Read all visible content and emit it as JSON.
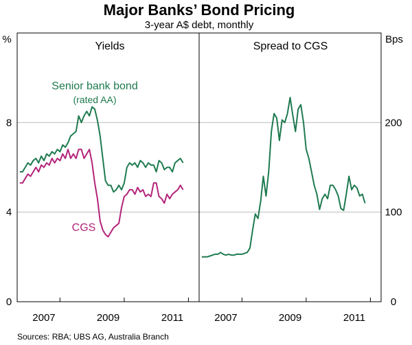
{
  "title": "Major Banks’ Bond Pricing",
  "subtitle": "3-year A$ debt, monthly",
  "source": "Sources: RBA; UBS AG, Australia Branch",
  "left_unit": "%",
  "right_unit": "Bps",
  "colors": {
    "senior": "#1e7a4f",
    "cgs": "#b3237a",
    "grid": "#bdbdbd",
    "frame": "#000000"
  },
  "chart_data": [
    {
      "type": "line",
      "panel_title": "Yields",
      "y_unit": "%",
      "ylim": [
        0,
        12
      ],
      "yticks": [
        "0",
        "4",
        "8"
      ],
      "x_ticks": [
        "2007",
        "2009",
        "2011"
      ],
      "xlim": [
        "2005-09",
        "2011-05"
      ],
      "series": [
        {
          "name": "Senior bank bond",
          "name_note": "(rated AA)",
          "color": "#1e7a4f",
          "x": [
            "2005-10",
            "2005-11",
            "2005-12",
            "2006-01",
            "2006-02",
            "2006-03",
            "2006-04",
            "2006-05",
            "2006-06",
            "2006-07",
            "2006-08",
            "2006-09",
            "2006-10",
            "2006-11",
            "2006-12",
            "2007-01",
            "2007-02",
            "2007-03",
            "2007-04",
            "2007-05",
            "2007-06",
            "2007-07",
            "2007-08",
            "2007-09",
            "2007-10",
            "2007-11",
            "2007-12",
            "2008-01",
            "2008-02",
            "2008-03",
            "2008-04",
            "2008-05",
            "2008-06",
            "2008-07",
            "2008-08",
            "2008-09",
            "2008-10",
            "2008-11",
            "2008-12",
            "2009-01",
            "2009-02",
            "2009-03",
            "2009-04",
            "2009-05",
            "2009-06",
            "2009-07",
            "2009-08",
            "2009-09",
            "2009-10",
            "2009-11",
            "2009-12",
            "2010-01",
            "2010-02",
            "2010-03",
            "2010-04",
            "2010-05",
            "2010-06",
            "2010-07",
            "2010-08",
            "2010-09",
            "2010-10",
            "2010-11"
          ],
          "values": [
            5.8,
            5.8,
            6.0,
            6.2,
            6.1,
            6.3,
            6.4,
            6.2,
            6.5,
            6.3,
            6.6,
            6.5,
            6.7,
            6.6,
            6.8,
            6.7,
            7.0,
            6.9,
            7.1,
            7.4,
            7.5,
            7.6,
            8.3,
            8.0,
            8.3,
            8.5,
            8.3,
            8.7,
            8.6,
            8.1,
            7.4,
            6.4,
            5.4,
            5.2,
            5.2,
            4.9,
            5.0,
            5.2,
            5.0,
            5.3,
            6.0,
            6.2,
            6.1,
            6.2,
            6.0,
            6.3,
            6.2,
            6.0,
            6.2,
            6.1,
            6.1,
            5.8,
            6.3,
            6.2,
            5.9,
            6.0,
            6.0,
            5.8,
            6.2,
            6.3,
            6.4,
            6.2
          ]
        },
        {
          "name": "CGS",
          "color": "#b3237a",
          "x": [
            "2005-10",
            "2005-11",
            "2005-12",
            "2006-01",
            "2006-02",
            "2006-03",
            "2006-04",
            "2006-05",
            "2006-06",
            "2006-07",
            "2006-08",
            "2006-09",
            "2006-10",
            "2006-11",
            "2006-12",
            "2007-01",
            "2007-02",
            "2007-03",
            "2007-04",
            "2007-05",
            "2007-06",
            "2007-07",
            "2007-08",
            "2007-09",
            "2007-10",
            "2007-11",
            "2007-12",
            "2008-01",
            "2008-02",
            "2008-03",
            "2008-04",
            "2008-05",
            "2008-06",
            "2008-07",
            "2008-08",
            "2008-09",
            "2008-10",
            "2008-11",
            "2008-12",
            "2009-01",
            "2009-02",
            "2009-03",
            "2009-04",
            "2009-05",
            "2009-06",
            "2009-07",
            "2009-08",
            "2009-09",
            "2009-10",
            "2009-11",
            "2009-12",
            "2010-01",
            "2010-02",
            "2010-03",
            "2010-04",
            "2010-05",
            "2010-06",
            "2010-07",
            "2010-08",
            "2010-09",
            "2010-10",
            "2010-11"
          ],
          "values": [
            5.3,
            5.3,
            5.5,
            5.7,
            5.6,
            5.8,
            6.0,
            5.8,
            6.1,
            6.0,
            6.2,
            6.1,
            6.4,
            6.2,
            6.4,
            6.3,
            6.6,
            6.4,
            6.8,
            6.4,
            6.6,
            6.4,
            6.8,
            6.8,
            6.4,
            6.6,
            6.8,
            6.2,
            5.3,
            4.6,
            3.6,
            3.2,
            3.0,
            2.9,
            3.1,
            3.3,
            3.4,
            3.5,
            4.2,
            4.7,
            4.8,
            5.0,
            5.0,
            4.8,
            5.1,
            4.9,
            5.0,
            4.7,
            4.8,
            4.7,
            5.3,
            5.3,
            4.7,
            4.6,
            4.4,
            4.8,
            4.6,
            4.8,
            4.9,
            5.0,
            5.2,
            5.0
          ]
        }
      ]
    },
    {
      "type": "line",
      "panel_title": "Spread to CGS",
      "y_unit": "Bps",
      "ylim": [
        0,
        300
      ],
      "yticks": [
        "0",
        "100",
        "200"
      ],
      "x_ticks": [
        "2007",
        "2009",
        "2011"
      ],
      "xlim": [
        "2005-09",
        "2011-05"
      ],
      "series": [
        {
          "name": "",
          "color": "#1e7a4f",
          "x": [
            "2005-10",
            "2005-11",
            "2005-12",
            "2006-01",
            "2006-02",
            "2006-03",
            "2006-04",
            "2006-05",
            "2006-06",
            "2006-07",
            "2006-08",
            "2006-09",
            "2006-10",
            "2006-11",
            "2006-12",
            "2007-01",
            "2007-02",
            "2007-03",
            "2007-04",
            "2007-05",
            "2007-06",
            "2007-07",
            "2007-08",
            "2007-09",
            "2007-10",
            "2007-11",
            "2007-12",
            "2008-01",
            "2008-02",
            "2008-03",
            "2008-04",
            "2008-05",
            "2008-06",
            "2008-07",
            "2008-08",
            "2008-09",
            "2008-10",
            "2008-11",
            "2008-12",
            "2009-01",
            "2009-02",
            "2009-03",
            "2009-04",
            "2009-05",
            "2009-06",
            "2009-07",
            "2009-08",
            "2009-09",
            "2009-10",
            "2009-11",
            "2009-12",
            "2010-01",
            "2010-02",
            "2010-03",
            "2010-04",
            "2010-05",
            "2010-06",
            "2010-07",
            "2010-08",
            "2010-09",
            "2010-10",
            "2010-11"
          ],
          "values": [
            50,
            50,
            50,
            51,
            52,
            53,
            53,
            55,
            53,
            52,
            53,
            52,
            52,
            53,
            53,
            53,
            54,
            55,
            60,
            80,
            98,
            93,
            112,
            140,
            118,
            145,
            190,
            210,
            205,
            180,
            203,
            200,
            210,
            228,
            208,
            190,
            215,
            220,
            200,
            170,
            160,
            145,
            130,
            120,
            103,
            115,
            120,
            115,
            130,
            130,
            125,
            118,
            104,
            102,
            120,
            140,
            125,
            130,
            127,
            118,
            120,
            110
          ]
        }
      ]
    }
  ]
}
